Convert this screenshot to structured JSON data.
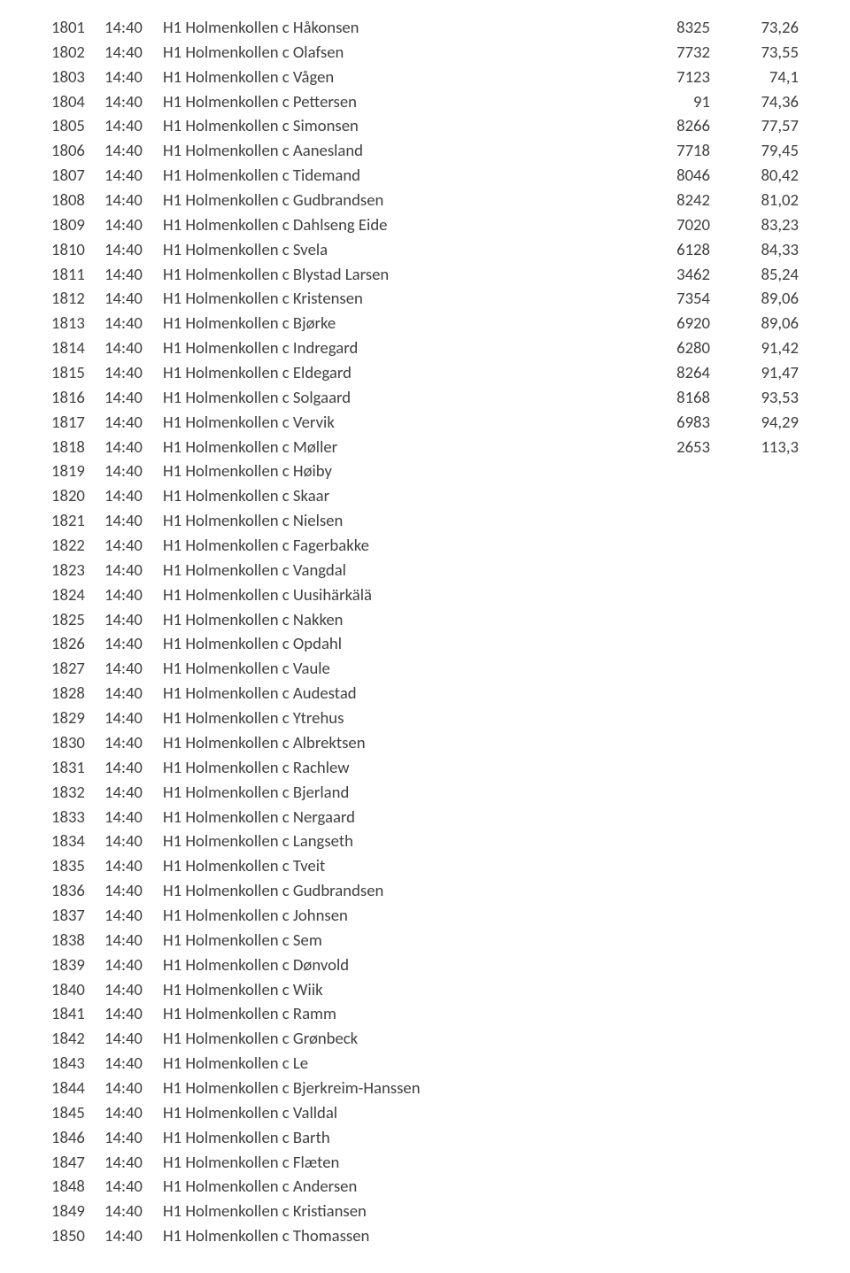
{
  "text_color": "#3f3f3f",
  "background_color": "#ffffff",
  "font_family": "Calibri",
  "font_size_pt": 14,
  "rows": [
    {
      "idx": "1801",
      "time": "14:40",
      "desc": "H1 Holmenkollen c Håkonsen",
      "num": "8325",
      "val": "73,26"
    },
    {
      "idx": "1802",
      "time": "14:40",
      "desc": "H1 Holmenkollen c Olafsen",
      "num": "7732",
      "val": "73,55"
    },
    {
      "idx": "1803",
      "time": "14:40",
      "desc": "H1 Holmenkollen c Vågen",
      "num": "7123",
      "val": "74,1"
    },
    {
      "idx": "1804",
      "time": "14:40",
      "desc": "H1 Holmenkollen c Pettersen",
      "num": "91",
      "val": "74,36"
    },
    {
      "idx": "1805",
      "time": "14:40",
      "desc": "H1 Holmenkollen c Simonsen",
      "num": "8266",
      "val": "77,57"
    },
    {
      "idx": "1806",
      "time": "14:40",
      "desc": "H1 Holmenkollen c Aanesland",
      "num": "7718",
      "val": "79,45"
    },
    {
      "idx": "1807",
      "time": "14:40",
      "desc": "H1 Holmenkollen c Tidemand",
      "num": "8046",
      "val": "80,42"
    },
    {
      "idx": "1808",
      "time": "14:40",
      "desc": "H1 Holmenkollen c Gudbrandsen",
      "num": "8242",
      "val": "81,02"
    },
    {
      "idx": "1809",
      "time": "14:40",
      "desc": "H1 Holmenkollen c Dahlseng Eide",
      "num": "7020",
      "val": "83,23"
    },
    {
      "idx": "1810",
      "time": "14:40",
      "desc": "H1 Holmenkollen c Svela",
      "num": "6128",
      "val": "84,33"
    },
    {
      "idx": "1811",
      "time": "14:40",
      "desc": "H1 Holmenkollen c Blystad Larsen",
      "num": "3462",
      "val": "85,24"
    },
    {
      "idx": "1812",
      "time": "14:40",
      "desc": "H1 Holmenkollen c Kristensen",
      "num": "7354",
      "val": "89,06"
    },
    {
      "idx": "1813",
      "time": "14:40",
      "desc": "H1 Holmenkollen c Bjørke",
      "num": "6920",
      "val": "89,06"
    },
    {
      "idx": "1814",
      "time": "14:40",
      "desc": "H1 Holmenkollen c Indregard",
      "num": "6280",
      "val": "91,42"
    },
    {
      "idx": "1815",
      "time": "14:40",
      "desc": "H1 Holmenkollen c Eldegard",
      "num": "8264",
      "val": "91,47"
    },
    {
      "idx": "1816",
      "time": "14:40",
      "desc": "H1 Holmenkollen c Solgaard",
      "num": "8168",
      "val": "93,53"
    },
    {
      "idx": "1817",
      "time": "14:40",
      "desc": "H1 Holmenkollen c Vervik",
      "num": "6983",
      "val": "94,29"
    },
    {
      "idx": "1818",
      "time": "14:40",
      "desc": "H1 Holmenkollen c Møller",
      "num": "2653",
      "val": "113,3"
    },
    {
      "idx": "1819",
      "time": "14:40",
      "desc": "H1 Holmenkollen c Høiby",
      "num": "",
      "val": ""
    },
    {
      "idx": "1820",
      "time": "14:40",
      "desc": "H1 Holmenkollen c Skaar",
      "num": "",
      "val": ""
    },
    {
      "idx": "1821",
      "time": "14:40",
      "desc": "H1 Holmenkollen c Nielsen",
      "num": "",
      "val": ""
    },
    {
      "idx": "1822",
      "time": "14:40",
      "desc": "H1 Holmenkollen c Fagerbakke",
      "num": "",
      "val": ""
    },
    {
      "idx": "1823",
      "time": "14:40",
      "desc": "H1 Holmenkollen c Vangdal",
      "num": "",
      "val": ""
    },
    {
      "idx": "1824",
      "time": "14:40",
      "desc": "H1 Holmenkollen c Uusihärkälä",
      "num": "",
      "val": ""
    },
    {
      "idx": "1825",
      "time": "14:40",
      "desc": "H1 Holmenkollen c Nakken",
      "num": "",
      "val": ""
    },
    {
      "idx": "1826",
      "time": "14:40",
      "desc": "H1 Holmenkollen c Opdahl",
      "num": "",
      "val": ""
    },
    {
      "idx": "1827",
      "time": "14:40",
      "desc": "H1 Holmenkollen c Vaule",
      "num": "",
      "val": ""
    },
    {
      "idx": "1828",
      "time": "14:40",
      "desc": "H1 Holmenkollen c Audestad",
      "num": "",
      "val": ""
    },
    {
      "idx": "1829",
      "time": "14:40",
      "desc": "H1 Holmenkollen c Ytrehus",
      "num": "",
      "val": ""
    },
    {
      "idx": "1830",
      "time": "14:40",
      "desc": "H1 Holmenkollen c Albrektsen",
      "num": "",
      "val": ""
    },
    {
      "idx": "1831",
      "time": "14:40",
      "desc": "H1 Holmenkollen c Rachlew",
      "num": "",
      "val": ""
    },
    {
      "idx": "1832",
      "time": "14:40",
      "desc": "H1 Holmenkollen c Bjerland",
      "num": "",
      "val": ""
    },
    {
      "idx": "1833",
      "time": "14:40",
      "desc": "H1 Holmenkollen c Nergaard",
      "num": "",
      "val": ""
    },
    {
      "idx": "1834",
      "time": "14:40",
      "desc": "H1 Holmenkollen c Langseth",
      "num": "",
      "val": ""
    },
    {
      "idx": "1835",
      "time": "14:40",
      "desc": "H1 Holmenkollen c Tveit",
      "num": "",
      "val": ""
    },
    {
      "idx": "1836",
      "time": "14:40",
      "desc": "H1 Holmenkollen c Gudbrandsen",
      "num": "",
      "val": ""
    },
    {
      "idx": "1837",
      "time": "14:40",
      "desc": "H1 Holmenkollen c Johnsen",
      "num": "",
      "val": ""
    },
    {
      "idx": "1838",
      "time": "14:40",
      "desc": "H1 Holmenkollen c Sem",
      "num": "",
      "val": ""
    },
    {
      "idx": "1839",
      "time": "14:40",
      "desc": "H1 Holmenkollen c Dønvold",
      "num": "",
      "val": ""
    },
    {
      "idx": "1840",
      "time": "14:40",
      "desc": "H1 Holmenkollen c Wiik",
      "num": "",
      "val": ""
    },
    {
      "idx": "1841",
      "time": "14:40",
      "desc": "H1 Holmenkollen c Ramm",
      "num": "",
      "val": ""
    },
    {
      "idx": "1842",
      "time": "14:40",
      "desc": "H1 Holmenkollen c Grønbeck",
      "num": "",
      "val": ""
    },
    {
      "idx": "1843",
      "time": "14:40",
      "desc": "H1 Holmenkollen c Le",
      "num": "",
      "val": ""
    },
    {
      "idx": "1844",
      "time": "14:40",
      "desc": "H1 Holmenkollen c Bjerkreim-Hanssen",
      "num": "",
      "val": ""
    },
    {
      "idx": "1845",
      "time": "14:40",
      "desc": "H1 Holmenkollen c Valldal",
      "num": "",
      "val": ""
    },
    {
      "idx": "1846",
      "time": "14:40",
      "desc": "H1 Holmenkollen c Barth",
      "num": "",
      "val": ""
    },
    {
      "idx": "1847",
      "time": "14:40",
      "desc": "H1 Holmenkollen c Flæten",
      "num": "",
      "val": ""
    },
    {
      "idx": "1848",
      "time": "14:40",
      "desc": "H1 Holmenkollen c Andersen",
      "num": "",
      "val": ""
    },
    {
      "idx": "1849",
      "time": "14:40",
      "desc": "H1 Holmenkollen c Kristiansen",
      "num": "",
      "val": ""
    },
    {
      "idx": "1850",
      "time": "14:40",
      "desc": "H1 Holmenkollen c Thomassen",
      "num": "",
      "val": ""
    }
  ]
}
